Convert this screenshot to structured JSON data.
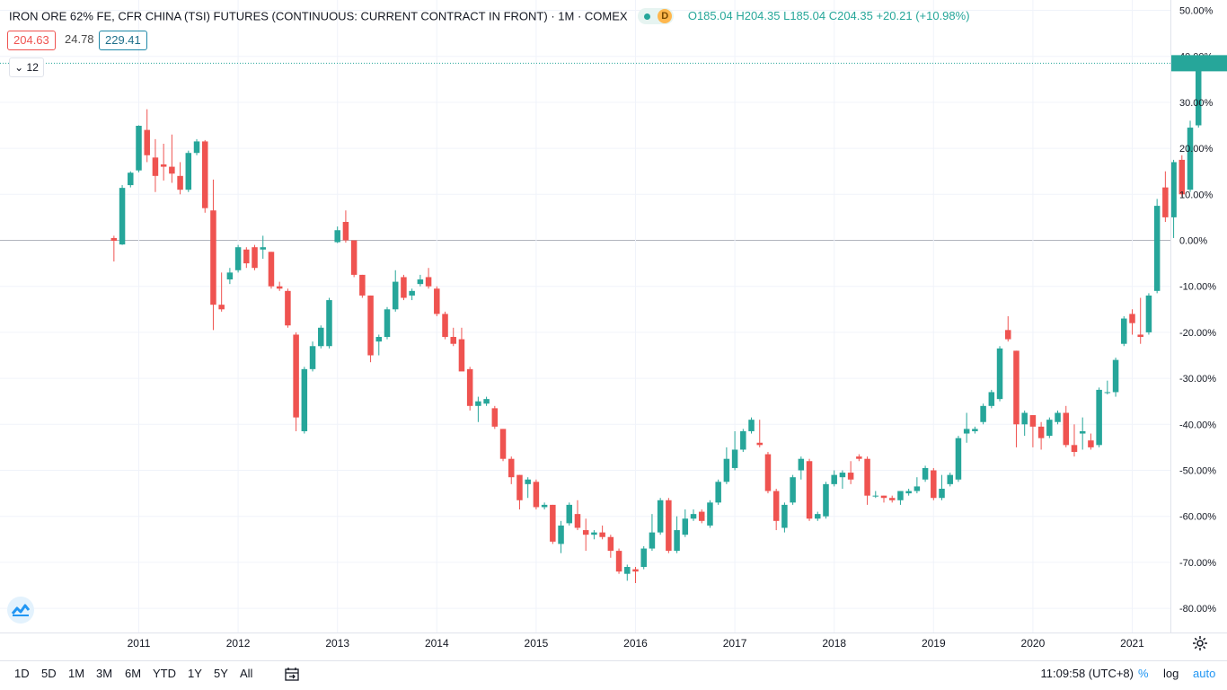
{
  "legend": {
    "title": "IRON ORE 62% FE, CFR CHINA (TSI) FUTURES (CONTINUOUS: CURRENT CONTRACT IN FRONT)",
    "interval": "1M",
    "exchange": "COMEX",
    "status_letter": "D",
    "ohlc": "O185.04 H204.35 L185.04 C204.35 +20.21 (+10.98%)"
  },
  "badges": {
    "left": "204.63",
    "middle": "24.78",
    "right": "229.41"
  },
  "collapse_label": "12",
  "toolbar": {
    "timeframes": [
      "1D",
      "5D",
      "1M",
      "3M",
      "6M",
      "YTD",
      "1Y",
      "5Y",
      "All"
    ],
    "time": "11:09:58 (UTC+8)",
    "percent": "%",
    "log": "log",
    "auto": "auto"
  },
  "colors": {
    "up": "#26a69a",
    "down": "#ef5350",
    "grid": "#f0f3fa",
    "zero": "#b2b5be"
  },
  "icons": [
    "calendar-range-icon",
    "gear-icon",
    "tradingview-logo-icon",
    "chevron-down-icon"
  ],
  "chart_data": {
    "type": "candlestick",
    "xlabel": "",
    "ylabel": "",
    "y_ticks": [
      "50.00%",
      "40.00%",
      "30.00%",
      "20.00%",
      "10.00%",
      "0.00%",
      "-10.00%",
      "-20.00%",
      "-30.00%",
      "-40.00%",
      "-50.00%",
      "-60.00%",
      "-70.00%",
      "-80.00%"
    ],
    "y_tick_values": [
      50,
      40,
      30,
      20,
      10,
      0,
      -10,
      -20,
      -30,
      -40,
      -50,
      -60,
      -70,
      -80
    ],
    "x_ticks": [
      "2011",
      "2012",
      "2013",
      "2014",
      "2015",
      "2016",
      "2017",
      "2018",
      "2019",
      "2020",
      "2021"
    ],
    "x_tick_years": [
      2011,
      2012,
      2013,
      2014,
      2015,
      2016,
      2017,
      2018,
      2019,
      2020,
      2021
    ],
    "start_year": 2010,
    "start_month": 10,
    "ylim": [
      -85,
      50
    ],
    "last_value": 38.5,
    "candles": [
      [
        0.5,
        -0.1,
        1.0,
        -4.6
      ],
      [
        -0.9,
        11.4,
        12.0,
        -1.0
      ],
      [
        12.0,
        14.7,
        15.0,
        11.5
      ],
      [
        15.2,
        24.9,
        25.0,
        14.8
      ],
      [
        24.0,
        18.5,
        28.5,
        17.0
      ],
      [
        18.0,
        14.0,
        22.0,
        10.5
      ],
      [
        16.5,
        16.0,
        21.0,
        13.0
      ],
      [
        16.0,
        14.5,
        23.0,
        12.5
      ],
      [
        14.0,
        11.0,
        17.0,
        10.0
      ],
      [
        11.0,
        19.0,
        19.5,
        10.5
      ],
      [
        19.0,
        21.5,
        22.0,
        18.5
      ],
      [
        21.5,
        7.0,
        21.8,
        6.0
      ],
      [
        6.5,
        -14.0,
        13.2,
        -19.5
      ],
      [
        -14.0,
        -15.0,
        -7.0,
        -15.5
      ],
      [
        -8.5,
        -7.0,
        -6.0,
        -9.5
      ],
      [
        -6.5,
        -1.5,
        -1.0,
        -7.0
      ],
      [
        -2.0,
        -5.0,
        -1.5,
        -6.0
      ],
      [
        -1.5,
        -6.0,
        -1.0,
        -6.5
      ],
      [
        -2.0,
        -1.5,
        1.0,
        -4.0
      ],
      [
        -2.5,
        -10.0,
        -2.5,
        -10.5
      ],
      [
        -10.0,
        -10.5,
        -9.0,
        -11.0
      ],
      [
        -11.0,
        -18.5,
        -10.5,
        -19.0
      ],
      [
        -20.5,
        -38.5,
        -20.0,
        -41.5
      ],
      [
        -41.5,
        -28.0,
        -27.5,
        -42.0
      ],
      [
        -28.0,
        -23.0,
        -22.0,
        -28.5
      ],
      [
        -23.0,
        -19.0,
        -18.5,
        -23.5
      ],
      [
        -23.0,
        -13.0,
        -12.5,
        -23.5
      ],
      [
        -0.4,
        2.2,
        3.0,
        -0.6
      ],
      [
        4.0,
        0.0,
        6.5,
        -0.5
      ],
      [
        0.0,
        -7.5,
        -0.5,
        -8.0
      ],
      [
        -7.5,
        -12.0,
        -7.5,
        -12.5
      ],
      [
        -12.0,
        -25.0,
        -12.0,
        -26.5
      ],
      [
        -22.0,
        -21.0,
        -20.5,
        -25.0
      ],
      [
        -21.0,
        -15.0,
        -14.5,
        -21.5
      ],
      [
        -15.0,
        -9.0,
        -6.5,
        -15.5
      ],
      [
        -8.0,
        -12.5,
        -7.5,
        -13.0
      ],
      [
        -12.0,
        -11.0,
        -10.5,
        -13.0
      ],
      [
        -9.5,
        -8.5,
        -7.5,
        -10.0
      ],
      [
        -8.0,
        -10.0,
        -6.0,
        -10.5
      ],
      [
        -10.5,
        -16.0,
        -10.0,
        -16.5
      ],
      [
        -16.0,
        -21.0,
        -15.5,
        -21.5
      ],
      [
        -21.0,
        -22.5,
        -19.0,
        -23.0
      ],
      [
        -21.5,
        -28.5,
        -19.0,
        -28.0
      ],
      [
        -28.0,
        -36.0,
        -27.5,
        -37.0
      ],
      [
        -36.0,
        -35.0,
        -34.0,
        -39.5
      ],
      [
        -35.5,
        -34.5,
        -34.0,
        -36.0
      ],
      [
        -36.5,
        -40.5,
        -36.0,
        -41.0
      ],
      [
        -41.0,
        -47.5,
        -41.0,
        -48.0
      ],
      [
        -47.5,
        -51.5,
        -47.0,
        -53.0
      ],
      [
        -51.0,
        -56.5,
        -51.0,
        -58.5
      ],
      [
        -53.0,
        -52.0,
        -51.5,
        -56.0
      ],
      [
        -52.5,
        -58.0,
        -52.0,
        -58.5
      ],
      [
        -58.0,
        -57.5,
        -57.0,
        -58.5
      ],
      [
        -57.5,
        -65.5,
        -57.5,
        -66.0
      ],
      [
        -66.0,
        -62.0,
        -61.0,
        -68.0
      ],
      [
        -61.5,
        -57.5,
        -57.0,
        -62.0
      ],
      [
        -59.5,
        -62.5,
        -56.5,
        -63.0
      ],
      [
        -63.0,
        -64.0,
        -60.5,
        -67.5
      ],
      [
        -64.0,
        -63.5,
        -63.0,
        -65.0
      ],
      [
        -63.5,
        -64.5,
        -62.0,
        -65.0
      ],
      [
        -64.5,
        -67.5,
        -64.0,
        -69.0
      ],
      [
        -67.5,
        -72.0,
        -67.0,
        -72.5
      ],
      [
        -72.5,
        -71.0,
        -70.5,
        -74.0
      ],
      [
        -71.5,
        -72.0,
        -71.0,
        -74.5
      ],
      [
        -71.0,
        -67.0,
        -66.5,
        -71.5
      ],
      [
        -67.0,
        -63.5,
        -59.5,
        -67.5
      ],
      [
        -63.5,
        -56.5,
        -56.0,
        -64.0
      ],
      [
        -56.5,
        -67.5,
        -56.0,
        -68.0
      ],
      [
        -67.5,
        -63.0,
        -60.0,
        -68.0
      ],
      [
        -64.0,
        -60.5,
        -58.5,
        -64.5
      ],
      [
        -60.5,
        -59.5,
        -58.5,
        -61.0
      ],
      [
        -59.0,
        -61.0,
        -58.5,
        -61.5
      ],
      [
        -62.0,
        -57.0,
        -56.5,
        -62.5
      ],
      [
        -57.0,
        -52.5,
        -52.0,
        -57.5
      ],
      [
        -52.5,
        -47.5,
        -45.0,
        -53.0
      ],
      [
        -49.5,
        -45.5,
        -41.5,
        -50.0
      ],
      [
        -45.5,
        -41.5,
        -41.0,
        -46.0
      ],
      [
        -41.5,
        -39.0,
        -38.5,
        -42.0
      ],
      [
        -44.0,
        -44.5,
        -39.0,
        -45.0
      ],
      [
        -46.5,
        -54.5,
        -46.0,
        -55.0
      ],
      [
        -54.5,
        -61.0,
        -54.0,
        -63.0
      ],
      [
        -62.5,
        -57.5,
        -57.0,
        -63.5
      ],
      [
        -57.0,
        -51.5,
        -51.0,
        -57.5
      ],
      [
        -50.0,
        -47.5,
        -47.0,
        -52.0
      ],
      [
        -48.0,
        -60.5,
        -47.5,
        -61.0
      ],
      [
        -60.5,
        -59.5,
        -59.0,
        -61.0
      ],
      [
        -60.0,
        -53.0,
        -52.5,
        -60.5
      ],
      [
        -53.0,
        -51.0,
        -50.0,
        -53.5
      ],
      [
        -51.5,
        -50.5,
        -50.0,
        -54.0
      ],
      [
        -50.5,
        -52.0,
        -48.0,
        -53.0
      ],
      [
        -47.0,
        -47.5,
        -46.5,
        -48.0
      ],
      [
        -47.5,
        -55.5,
        -47.0,
        -57.5
      ],
      [
        -55.5,
        -55.5,
        -54.5,
        -56.0
      ],
      [
        -55.5,
        -56.0,
        -55.5,
        -57.0
      ],
      [
        -56.0,
        -56.5,
        -55.5,
        -57.0
      ],
      [
        -56.5,
        -54.5,
        -54.5,
        -57.5
      ],
      [
        -55.0,
        -54.5,
        -54.0,
        -55.5
      ],
      [
        -54.5,
        -53.5,
        -51.5,
        -55.0
      ],
      [
        -52.0,
        -49.5,
        -49.0,
        -52.5
      ],
      [
        -50.0,
        -56.0,
        -49.5,
        -56.5
      ],
      [
        -56.0,
        -54.0,
        -51.0,
        -56.5
      ],
      [
        -53.0,
        -51.0,
        -50.5,
        -53.5
      ],
      [
        -52.0,
        -43.0,
        -42.5,
        -52.5
      ],
      [
        -42.0,
        -41.0,
        -37.5,
        -44.0
      ],
      [
        -41.5,
        -41.0,
        -40.5,
        -42.0
      ],
      [
        -39.5,
        -36.0,
        -35.5,
        -40.0
      ],
      [
        -36.0,
        -33.0,
        -32.5,
        -36.5
      ],
      [
        -34.5,
        -23.5,
        -23.0,
        -35.0
      ],
      [
        -19.5,
        -21.5,
        -16.5,
        -22.0
      ],
      [
        -24.0,
        -40.0,
        -24.0,
        -45.0
      ],
      [
        -40.0,
        -37.5,
        -37.0,
        -42.5
      ],
      [
        -38.0,
        -40.5,
        -38.0,
        -45.0
      ],
      [
        -40.5,
        -43.0,
        -39.5,
        -45.5
      ],
      [
        -42.5,
        -39.0,
        -38.5,
        -43.0
      ],
      [
        -39.5,
        -37.5,
        -37.0,
        -40.0
      ],
      [
        -37.5,
        -44.5,
        -36.0,
        -45.0
      ],
      [
        -44.5,
        -46.0,
        -40.0,
        -47.0
      ],
      [
        -42.0,
        -41.5,
        -38.5,
        -45.5
      ],
      [
        -43.5,
        -45.0,
        -42.0,
        -45.5
      ],
      [
        -44.5,
        -32.5,
        -32.0,
        -45.0
      ],
      [
        -33.0,
        -33.0,
        -30.5,
        -33.5
      ],
      [
        -33.0,
        -26.0,
        -25.5,
        -34.0
      ],
      [
        -22.5,
        -17.0,
        -16.5,
        -23.0
      ],
      [
        -16.0,
        -18.0,
        -15.0,
        -20.5
      ],
      [
        -20.5,
        -21.0,
        -12.5,
        -22.5
      ],
      [
        -20.0,
        -12.0,
        -11.5,
        -20.5
      ],
      [
        -11.0,
        7.5,
        9.0,
        -11.5
      ],
      [
        11.5,
        5.0,
        15.0,
        4.0
      ],
      [
        5.0,
        17.0,
        17.5,
        0.5
      ],
      [
        17.5,
        10.0,
        18.5,
        9.5
      ],
      [
        11.0,
        24.5,
        26.0,
        10.5
      ],
      [
        25.0,
        38.5,
        39.0,
        24.5
      ]
    ]
  }
}
